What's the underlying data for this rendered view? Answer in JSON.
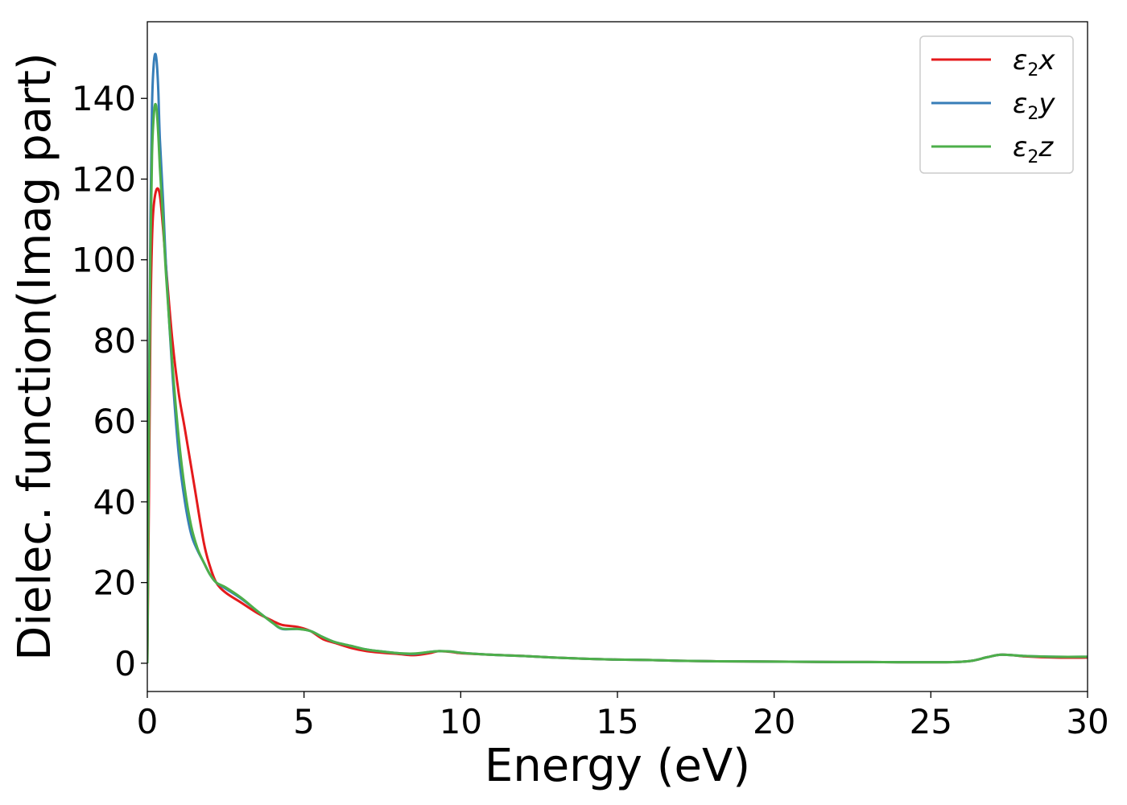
{
  "chart_data": {
    "type": "line",
    "title": "",
    "xlabel": "Energy (eV)",
    "ylabel": "Dielec. function(Imag part)",
    "xlim": [
      0,
      30
    ],
    "ylim": [
      -7,
      159
    ],
    "xticks": [
      0,
      5,
      10,
      15,
      20,
      25,
      30
    ],
    "yticks": [
      0,
      20,
      40,
      60,
      80,
      100,
      120,
      140
    ],
    "grid": false,
    "legend_position": "top-right",
    "series": [
      {
        "name": "ε2x",
        "legend": {
          "base": "ε",
          "sub": "2",
          "tail": "x"
        },
        "color": "#e41a1c",
        "points": [
          [
            0,
            0
          ],
          [
            0.05,
            40
          ],
          [
            0.1,
            85
          ],
          [
            0.15,
            105
          ],
          [
            0.2,
            113
          ],
          [
            0.3,
            117.5
          ],
          [
            0.4,
            116
          ],
          [
            0.5,
            108
          ],
          [
            0.6,
            98
          ],
          [
            0.8,
            80
          ],
          [
            1.0,
            67
          ],
          [
            1.2,
            58
          ],
          [
            1.5,
            44
          ],
          [
            1.8,
            30
          ],
          [
            2.0,
            24
          ],
          [
            2.2,
            20
          ],
          [
            2.5,
            17.5
          ],
          [
            3.0,
            15
          ],
          [
            3.5,
            12.5
          ],
          [
            4.0,
            10.5
          ],
          [
            4.3,
            9.5
          ],
          [
            4.8,
            9
          ],
          [
            5.2,
            8
          ],
          [
            5.6,
            6
          ],
          [
            6.0,
            5
          ],
          [
            6.5,
            3.8
          ],
          [
            7.0,
            3
          ],
          [
            7.5,
            2.6
          ],
          [
            8.0,
            2.3
          ],
          [
            8.5,
            2
          ],
          [
            9.0,
            2.5
          ],
          [
            9.3,
            3
          ],
          [
            9.7,
            2.8
          ],
          [
            10.0,
            2.5
          ],
          [
            11,
            2.1
          ],
          [
            12,
            1.8
          ],
          [
            13,
            1.4
          ],
          [
            14,
            1.1
          ],
          [
            15,
            0.9
          ],
          [
            16,
            0.8
          ],
          [
            17,
            0.6
          ],
          [
            18,
            0.5
          ],
          [
            19,
            0.45
          ],
          [
            20,
            0.4
          ],
          [
            21,
            0.35
          ],
          [
            22,
            0.3
          ],
          [
            23,
            0.3
          ],
          [
            24,
            0.25
          ],
          [
            25,
            0.25
          ],
          [
            25.8,
            0.3
          ],
          [
            26.3,
            0.6
          ],
          [
            26.8,
            1.5
          ],
          [
            27.2,
            2.1
          ],
          [
            27.6,
            2.0
          ],
          [
            28,
            1.7
          ],
          [
            29,
            1.4
          ],
          [
            30,
            1.4
          ]
        ]
      },
      {
        "name": "ε2y",
        "legend": {
          "base": "ε",
          "sub": "2",
          "tail": "y"
        },
        "color": "#377eb8",
        "points": [
          [
            0,
            0
          ],
          [
            0.05,
            60
          ],
          [
            0.1,
            110
          ],
          [
            0.15,
            138
          ],
          [
            0.2,
            148
          ],
          [
            0.25,
            151
          ],
          [
            0.3,
            149
          ],
          [
            0.35,
            142
          ],
          [
            0.4,
            130
          ],
          [
            0.5,
            115
          ],
          [
            0.6,
            98
          ],
          [
            0.8,
            72
          ],
          [
            1.0,
            52
          ],
          [
            1.2,
            40
          ],
          [
            1.4,
            32
          ],
          [
            1.6,
            28
          ],
          [
            1.8,
            25
          ],
          [
            2.0,
            22
          ],
          [
            2.2,
            20
          ],
          [
            2.5,
            18.5
          ],
          [
            3.0,
            16
          ],
          [
            3.5,
            13
          ],
          [
            4.0,
            10
          ],
          [
            4.3,
            8.5
          ],
          [
            4.8,
            8.5
          ],
          [
            5.2,
            8
          ],
          [
            5.6,
            6.5
          ],
          [
            6.0,
            5.2
          ],
          [
            6.5,
            4.3
          ],
          [
            7.0,
            3.4
          ],
          [
            7.5,
            2.9
          ],
          [
            8.0,
            2.5
          ],
          [
            8.5,
            2.3
          ],
          [
            9.0,
            2.8
          ],
          [
            9.3,
            3
          ],
          [
            9.7,
            2.9
          ],
          [
            10.0,
            2.6
          ],
          [
            11,
            2.1
          ],
          [
            12,
            1.8
          ],
          [
            13,
            1.4
          ],
          [
            14,
            1.1
          ],
          [
            15,
            0.9
          ],
          [
            16,
            0.8
          ],
          [
            17,
            0.6
          ],
          [
            18,
            0.5
          ],
          [
            19,
            0.45
          ],
          [
            20,
            0.4
          ],
          [
            21,
            0.35
          ],
          [
            22,
            0.3
          ],
          [
            23,
            0.3
          ],
          [
            24,
            0.25
          ],
          [
            25,
            0.25
          ],
          [
            25.8,
            0.3
          ],
          [
            26.3,
            0.6
          ],
          [
            26.8,
            1.5
          ],
          [
            27.2,
            2.1
          ],
          [
            27.6,
            2.0
          ],
          [
            28,
            1.8
          ],
          [
            29,
            1.6
          ],
          [
            30,
            1.6
          ]
        ]
      },
      {
        "name": "ε2z",
        "legend": {
          "base": "ε",
          "sub": "2",
          "tail": "z"
        },
        "color": "#4daf4a",
        "points": [
          [
            0,
            0
          ],
          [
            0.05,
            55
          ],
          [
            0.1,
            102
          ],
          [
            0.15,
            126
          ],
          [
            0.2,
            135
          ],
          [
            0.25,
            138.5
          ],
          [
            0.3,
            137
          ],
          [
            0.35,
            131
          ],
          [
            0.4,
            123
          ],
          [
            0.5,
            110
          ],
          [
            0.6,
            96
          ],
          [
            0.8,
            74
          ],
          [
            1.0,
            56
          ],
          [
            1.2,
            43
          ],
          [
            1.4,
            34
          ],
          [
            1.6,
            28.5
          ],
          [
            1.8,
            25
          ],
          [
            2.0,
            22
          ],
          [
            2.2,
            20
          ],
          [
            2.5,
            18.8
          ],
          [
            3.0,
            16.2
          ],
          [
            3.5,
            13
          ],
          [
            4.0,
            10
          ],
          [
            4.3,
            8.6
          ],
          [
            4.8,
            8.5
          ],
          [
            5.2,
            8
          ],
          [
            5.6,
            6.5
          ],
          [
            6.0,
            5.2
          ],
          [
            6.5,
            4.3
          ],
          [
            7.0,
            3.4
          ],
          [
            7.5,
            2.9
          ],
          [
            8.0,
            2.5
          ],
          [
            8.5,
            2.4
          ],
          [
            9.0,
            2.8
          ],
          [
            9.3,
            3
          ],
          [
            9.7,
            2.9
          ],
          [
            10.0,
            2.6
          ],
          [
            11,
            2.1
          ],
          [
            12,
            1.8
          ],
          [
            13,
            1.4
          ],
          [
            14,
            1.1
          ],
          [
            15,
            0.9
          ],
          [
            16,
            0.8
          ],
          [
            17,
            0.6
          ],
          [
            18,
            0.5
          ],
          [
            19,
            0.45
          ],
          [
            20,
            0.4
          ],
          [
            21,
            0.35
          ],
          [
            22,
            0.3
          ],
          [
            23,
            0.3
          ],
          [
            24,
            0.25
          ],
          [
            25,
            0.25
          ],
          [
            25.8,
            0.3
          ],
          [
            26.3,
            0.6
          ],
          [
            26.8,
            1.5
          ],
          [
            27.2,
            2.1
          ],
          [
            27.6,
            2.0
          ],
          [
            28,
            1.8
          ],
          [
            29,
            1.6
          ],
          [
            30,
            1.6
          ]
        ]
      }
    ]
  }
}
